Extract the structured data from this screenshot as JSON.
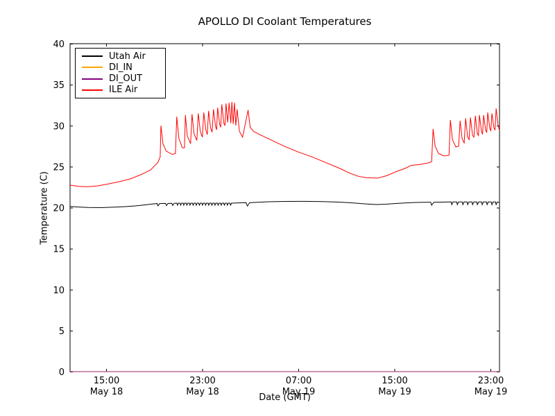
{
  "chart_data": {
    "type": "line",
    "title": "APOLLO DI Coolant Temperatures",
    "xlabel": "Date (GMT)",
    "ylabel": "Temperature (C)",
    "ylim": [
      0,
      40
    ],
    "yticks": [
      0,
      5,
      10,
      15,
      20,
      25,
      30,
      35,
      40
    ],
    "xlim_hours": [
      0,
      35.75
    ],
    "x_hours_origin": "12:00 May 18",
    "grid": false,
    "legend": {
      "position": "upper-left",
      "entries": [
        {
          "label": "Utah Air",
          "color": "#000000"
        },
        {
          "label": "DI_IN",
          "color": "#ffa500"
        },
        {
          "label": "DI_OUT",
          "color": "#800080"
        },
        {
          "label": "ILE Air",
          "color": "#ff0000"
        }
      ]
    },
    "xticks": [
      {
        "t": 3,
        "time": "15:00",
        "date": "May 18"
      },
      {
        "t": 11,
        "time": "23:00",
        "date": "May 18"
      },
      {
        "t": 19,
        "time": "07:00",
        "date": "May 19"
      },
      {
        "t": 27,
        "time": "15:00",
        "date": "May 19"
      },
      {
        "t": 35,
        "time": "23:00",
        "date": "May 19"
      }
    ],
    "series": [
      {
        "name": "Utah Air",
        "color": "#000000",
        "points": [
          [
            0,
            20.15
          ],
          [
            0.6,
            20.08
          ],
          [
            1.5,
            20.02
          ],
          [
            2.5,
            20.0
          ],
          [
            3.5,
            20.05
          ],
          [
            4.5,
            20.12
          ],
          [
            5.5,
            20.22
          ],
          [
            6.3,
            20.35
          ],
          [
            6.9,
            20.45
          ],
          [
            7.25,
            20.5
          ],
          [
            7.32,
            20.22
          ],
          [
            7.45,
            20.5
          ],
          [
            7.95,
            20.52
          ],
          [
            8.02,
            20.25
          ],
          [
            8.15,
            20.52
          ],
          [
            8.47,
            20.53
          ],
          [
            8.54,
            20.26
          ],
          [
            8.66,
            20.53
          ],
          [
            8.89,
            20.55
          ],
          [
            8.94,
            20.3
          ],
          [
            9.02,
            20.55
          ],
          [
            9.15,
            20.55
          ],
          [
            9.2,
            20.3
          ],
          [
            9.28,
            20.55
          ],
          [
            9.41,
            20.55
          ],
          [
            9.46,
            20.3
          ],
          [
            9.54,
            20.55
          ],
          [
            9.67,
            20.55
          ],
          [
            9.72,
            20.3
          ],
          [
            9.8,
            20.55
          ],
          [
            9.93,
            20.55
          ],
          [
            9.98,
            20.3
          ],
          [
            10.06,
            20.55
          ],
          [
            10.19,
            20.55
          ],
          [
            10.24,
            20.3
          ],
          [
            10.32,
            20.55
          ],
          [
            10.45,
            20.55
          ],
          [
            10.5,
            20.3
          ],
          [
            10.58,
            20.55
          ],
          [
            10.71,
            20.55
          ],
          [
            10.76,
            20.3
          ],
          [
            10.84,
            20.55
          ],
          [
            10.97,
            20.55
          ],
          [
            11.02,
            20.3
          ],
          [
            11.1,
            20.55
          ],
          [
            11.23,
            20.55
          ],
          [
            11.28,
            20.3
          ],
          [
            11.36,
            20.55
          ],
          [
            11.49,
            20.55
          ],
          [
            11.54,
            20.3
          ],
          [
            11.62,
            20.55
          ],
          [
            11.75,
            20.55
          ],
          [
            11.8,
            20.3
          ],
          [
            11.88,
            20.55
          ],
          [
            12.01,
            20.55
          ],
          [
            12.06,
            20.3
          ],
          [
            12.14,
            20.55
          ],
          [
            12.27,
            20.55
          ],
          [
            12.32,
            20.3
          ],
          [
            12.4,
            20.55
          ],
          [
            12.53,
            20.55
          ],
          [
            12.58,
            20.3
          ],
          [
            12.66,
            20.55
          ],
          [
            12.79,
            20.55
          ],
          [
            12.84,
            20.3
          ],
          [
            12.92,
            20.55
          ],
          [
            13.05,
            20.55
          ],
          [
            13.1,
            20.3
          ],
          [
            13.18,
            20.55
          ],
          [
            13.31,
            20.55
          ],
          [
            13.36,
            20.3
          ],
          [
            13.44,
            20.55
          ],
          [
            13.7,
            20.56
          ],
          [
            14.07,
            20.58
          ],
          [
            14.65,
            20.6
          ],
          [
            14.76,
            20.2
          ],
          [
            14.95,
            20.6
          ],
          [
            15.6,
            20.66
          ],
          [
            16.5,
            20.72
          ],
          [
            18.0,
            20.76
          ],
          [
            19.5,
            20.77
          ],
          [
            21.0,
            20.74
          ],
          [
            22.4,
            20.68
          ],
          [
            23.5,
            20.58
          ],
          [
            24.5,
            20.46
          ],
          [
            25.5,
            20.38
          ],
          [
            26.3,
            20.42
          ],
          [
            27.0,
            20.5
          ],
          [
            28.0,
            20.58
          ],
          [
            28.8,
            20.63
          ],
          [
            29.5,
            20.66
          ],
          [
            30.02,
            20.66
          ],
          [
            30.1,
            20.3
          ],
          [
            30.28,
            20.66
          ],
          [
            31.0,
            20.68
          ],
          [
            31.73,
            20.7
          ],
          [
            31.78,
            20.37
          ],
          [
            31.88,
            20.7
          ],
          [
            32.19,
            20.7
          ],
          [
            32.24,
            20.37
          ],
          [
            32.34,
            20.7
          ],
          [
            32.65,
            20.7
          ],
          [
            32.7,
            20.37
          ],
          [
            32.8,
            20.7
          ],
          [
            33.05,
            20.7
          ],
          [
            33.1,
            20.37
          ],
          [
            33.2,
            20.7
          ],
          [
            33.46,
            20.7
          ],
          [
            33.51,
            20.37
          ],
          [
            33.61,
            20.7
          ],
          [
            33.86,
            20.7
          ],
          [
            33.91,
            20.37
          ],
          [
            34.01,
            20.7
          ],
          [
            34.26,
            20.7
          ],
          [
            34.31,
            20.37
          ],
          [
            34.41,
            20.7
          ],
          [
            34.67,
            20.7
          ],
          [
            34.72,
            20.37
          ],
          [
            34.82,
            20.7
          ],
          [
            35.07,
            20.7
          ],
          [
            35.12,
            20.37
          ],
          [
            35.22,
            20.7
          ],
          [
            35.42,
            20.7
          ],
          [
            35.47,
            20.37
          ],
          [
            35.57,
            20.7
          ],
          [
            35.75,
            20.62
          ]
        ]
      },
      {
        "name": "DI_IN",
        "color": "#ffa500",
        "points": [
          [
            0,
            0
          ],
          [
            35.75,
            0
          ]
        ]
      },
      {
        "name": "DI_OUT",
        "color": "#800080",
        "points": [
          [
            0,
            0
          ],
          [
            35.75,
            0
          ]
        ]
      },
      {
        "name": "ILE Air",
        "color": "#ff0000",
        "points": [
          [
            0,
            22.75
          ],
          [
            0.7,
            22.6
          ],
          [
            1.4,
            22.55
          ],
          [
            2.3,
            22.65
          ],
          [
            3.2,
            22.9
          ],
          [
            4.2,
            23.2
          ],
          [
            5.1,
            23.55
          ],
          [
            6.0,
            24.1
          ],
          [
            6.7,
            24.6
          ],
          [
            7.3,
            25.5
          ],
          [
            7.5,
            26.2
          ],
          [
            7.56,
            30.0
          ],
          [
            7.73,
            27.8
          ],
          [
            8.0,
            26.9
          ],
          [
            8.5,
            26.5
          ],
          [
            8.77,
            26.6
          ],
          [
            8.88,
            31.1
          ],
          [
            9.05,
            28.5
          ],
          [
            9.34,
            27.3
          ],
          [
            9.52,
            27.3
          ],
          [
            9.6,
            31.3
          ],
          [
            9.75,
            28.8
          ],
          [
            10.03,
            27.8
          ],
          [
            10.15,
            31.4
          ],
          [
            10.32,
            29.0
          ],
          [
            10.55,
            28.2
          ],
          [
            10.67,
            31.5
          ],
          [
            10.84,
            29.3
          ],
          [
            11.01,
            28.6
          ],
          [
            11.13,
            31.6
          ],
          [
            11.3,
            29.5
          ],
          [
            11.42,
            28.9
          ],
          [
            11.53,
            31.8
          ],
          [
            11.7,
            29.7
          ],
          [
            11.82,
            29.2
          ],
          [
            11.94,
            32.0
          ],
          [
            12.11,
            29.9
          ],
          [
            12.2,
            29.5
          ],
          [
            12.28,
            32.2
          ],
          [
            12.46,
            30.1
          ],
          [
            12.54,
            29.8
          ],
          [
            12.63,
            32.6
          ],
          [
            12.8,
            30.3
          ],
          [
            12.89,
            30.0
          ],
          [
            12.98,
            32.7
          ],
          [
            13.12,
            30.4
          ],
          [
            13.24,
            32.8
          ],
          [
            13.38,
            30.3
          ],
          [
            13.47,
            32.9
          ],
          [
            13.58,
            30.2
          ],
          [
            13.68,
            32.8
          ],
          [
            13.8,
            30.0
          ],
          [
            13.9,
            32.0
          ],
          [
            14.1,
            29.3
          ],
          [
            14.36,
            28.6
          ],
          [
            14.82,
            31.9
          ],
          [
            14.99,
            29.8
          ],
          [
            15.28,
            29.3
          ],
          [
            15.8,
            28.9
          ],
          [
            16.67,
            28.3
          ],
          [
            17.82,
            27.5
          ],
          [
            18.97,
            26.8
          ],
          [
            20.13,
            26.2
          ],
          [
            21.28,
            25.5
          ],
          [
            22.43,
            24.8
          ],
          [
            23.3,
            24.2
          ],
          [
            24.05,
            23.8
          ],
          [
            24.74,
            23.65
          ],
          [
            25.61,
            23.6
          ],
          [
            26.36,
            23.9
          ],
          [
            27.16,
            24.4
          ],
          [
            27.91,
            24.8
          ],
          [
            28.37,
            25.15
          ],
          [
            29.06,
            25.25
          ],
          [
            29.81,
            25.45
          ],
          [
            30.1,
            25.6
          ],
          [
            30.22,
            29.6
          ],
          [
            30.39,
            27.5
          ],
          [
            30.68,
            26.6
          ],
          [
            31.14,
            26.3
          ],
          [
            31.55,
            26.4
          ],
          [
            31.66,
            30.7
          ],
          [
            31.83,
            28.3
          ],
          [
            32.12,
            27.4
          ],
          [
            32.35,
            27.5
          ],
          [
            32.47,
            30.6
          ],
          [
            32.64,
            28.4
          ],
          [
            32.81,
            27.9
          ],
          [
            32.93,
            30.9
          ],
          [
            33.1,
            28.6
          ],
          [
            33.22,
            28.3
          ],
          [
            33.33,
            31.0
          ],
          [
            33.51,
            28.8
          ],
          [
            33.62,
            28.6
          ],
          [
            33.74,
            31.2
          ],
          [
            33.91,
            29.0
          ],
          [
            34.0,
            28.8
          ],
          [
            34.08,
            31.3
          ],
          [
            34.26,
            29.2
          ],
          [
            34.34,
            29.0
          ],
          [
            34.43,
            31.3
          ],
          [
            34.6,
            29.4
          ],
          [
            34.69,
            29.2
          ],
          [
            34.77,
            31.6
          ],
          [
            34.95,
            29.6
          ],
          [
            35.03,
            29.4
          ],
          [
            35.12,
            31.5
          ],
          [
            35.29,
            29.7
          ],
          [
            35.38,
            29.5
          ],
          [
            35.47,
            32.1
          ],
          [
            35.64,
            30.0
          ],
          [
            35.75,
            29.4
          ]
        ]
      }
    ]
  }
}
